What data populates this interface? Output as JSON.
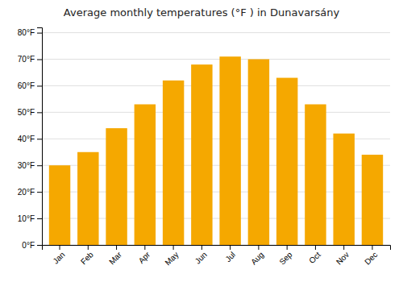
{
  "chart_data": {
    "type": "bar",
    "title": "Average monthly temperatures (°F ) in Dunavarsány",
    "categories": [
      "Jan",
      "Feb",
      "Mar",
      "Apr",
      "May",
      "Jun",
      "Jul",
      "Aug",
      "Sep",
      "Oct",
      "Nov",
      "Dec"
    ],
    "values": [
      30,
      35,
      44,
      53,
      62,
      68,
      71,
      70,
      63,
      53,
      42,
      34
    ],
    "color": "#F5A800",
    "ylim": [
      0,
      82
    ],
    "yticks": [
      {
        "value": 0,
        "label": "0°F"
      },
      {
        "value": 10,
        "label": "10°F"
      },
      {
        "value": 20,
        "label": "20°F"
      },
      {
        "value": 30,
        "label": "30°F"
      },
      {
        "value": 40,
        "label": "40°F"
      },
      {
        "value": 50,
        "label": "50°F"
      },
      {
        "value": 60,
        "label": "60°F"
      },
      {
        "value": 70,
        "label": "70°F"
      },
      {
        "value": 80,
        "label": "80°F"
      }
    ],
    "grid": true
  }
}
